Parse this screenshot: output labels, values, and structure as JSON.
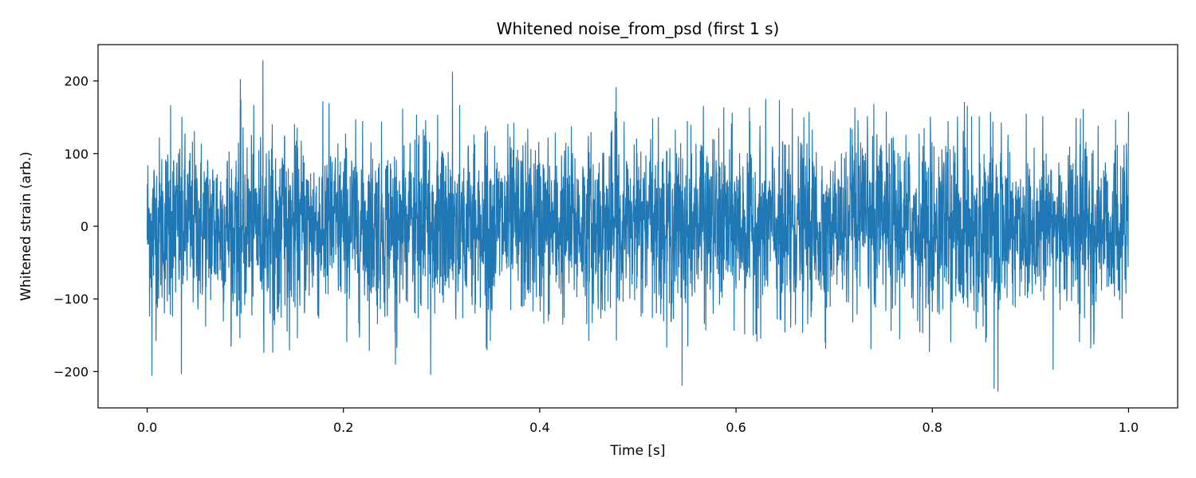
{
  "chart_data": {
    "type": "line",
    "title": "Whitened noise_from_psd (first 1 s)",
    "xlabel": "Time [s]",
    "ylabel": "Whitened strain (arb.)",
    "xlim": [
      -0.05,
      1.05
    ],
    "ylim": [
      -250,
      250
    ],
    "x_ticks": [
      0.0,
      0.2,
      0.4,
      0.6,
      0.8,
      1.0
    ],
    "x_tick_labels": [
      "0.0",
      "0.2",
      "0.4",
      "0.6",
      "0.8",
      "1.0"
    ],
    "y_ticks": [
      -200,
      -100,
      0,
      100,
      200
    ],
    "y_tick_labels": [
      "−200",
      "−100",
      "0",
      "100",
      "200"
    ],
    "grid": false,
    "series": [
      {
        "color": "#1f77b4",
        "x_range": [
          0.0,
          1.0
        ],
        "approx_std": 60,
        "peaks": [
          {
            "x": 0.005,
            "y": -205
          },
          {
            "x": 0.024,
            "y": 166
          },
          {
            "x": 0.035,
            "y": -203
          },
          {
            "x": 0.095,
            "y": 202
          },
          {
            "x": 0.118,
            "y": 228
          },
          {
            "x": 0.253,
            "y": -190
          },
          {
            "x": 0.289,
            "y": -204
          },
          {
            "x": 0.311,
            "y": 212
          },
          {
            "x": 0.478,
            "y": 191
          },
          {
            "x": 0.545,
            "y": -219
          },
          {
            "x": 0.863,
            "y": -223
          },
          {
            "x": 0.867,
            "y": -227
          },
          {
            "x": 0.923,
            "y": -197
          }
        ]
      }
    ]
  }
}
